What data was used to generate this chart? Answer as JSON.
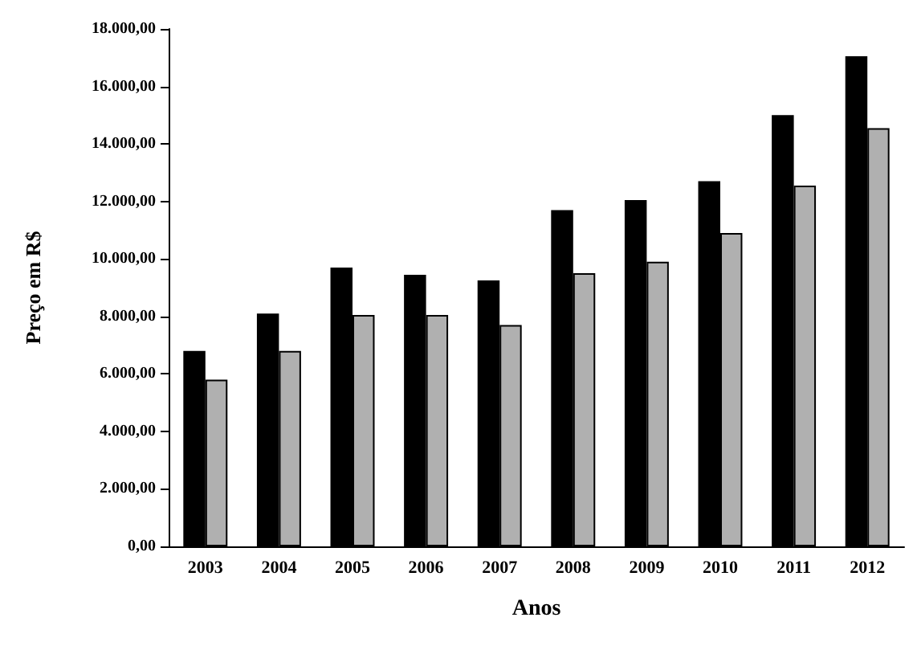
{
  "chart_data": {
    "type": "bar",
    "xlabel": "Anos",
    "ylabel": "Preço em R$",
    "categories": [
      "2003",
      "2004",
      "2005",
      "2006",
      "2007",
      "2008",
      "2009",
      "2010",
      "2011",
      "2012"
    ],
    "series": [
      {
        "color": "#000000",
        "values": [
          6800,
          8100,
          9700,
          9450,
          9250,
          11700,
          12050,
          12700,
          15000,
          17050
        ]
      },
      {
        "color": "#b0b0b0",
        "values": [
          5800,
          6800,
          8050,
          8050,
          7700,
          9500,
          9900,
          10900,
          12550,
          14550
        ]
      }
    ],
    "ylim": [
      0,
      18000
    ],
    "yticks": [
      {
        "value": 0,
        "label": "0,00"
      },
      {
        "value": 2000,
        "label": "2.000,00"
      },
      {
        "value": 4000,
        "label": "4.000,00"
      },
      {
        "value": 6000,
        "label": "6.000,00"
      },
      {
        "value": 8000,
        "label": "8.000,00"
      },
      {
        "value": 10000,
        "label": "10.000,00"
      },
      {
        "value": 12000,
        "label": "12.000,00"
      },
      {
        "value": 14000,
        "label": "14.000,00"
      },
      {
        "value": 16000,
        "label": "16.000,00"
      },
      {
        "value": 18000,
        "label": "18.000,00"
      }
    ],
    "grid": false
  }
}
